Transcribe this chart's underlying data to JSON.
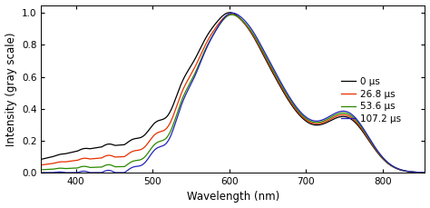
{
  "xlabel": "Wavelength (nm)",
  "ylabel": "Intensity (gray scale)",
  "xlim": [
    355,
    855
  ],
  "ylim": [
    0.0,
    1.05
  ],
  "yticks": [
    0.0,
    0.2,
    0.4,
    0.6,
    0.8,
    1.0
  ],
  "xticks": [
    400,
    500,
    600,
    700,
    800
  ],
  "legend_labels": [
    "0 μs",
    "26.8 μs",
    "53.6 μs",
    "107.2 μs"
  ],
  "colors": [
    "#000000",
    "#e63000",
    "#2a8a00",
    "#2222bb"
  ],
  "background": "#ffffff",
  "linewidth": 0.9,
  "figsize": [
    4.74,
    2.29
  ],
  "dpi": 100
}
